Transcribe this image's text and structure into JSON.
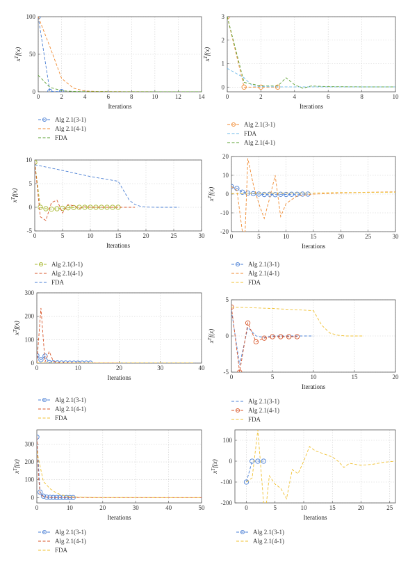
{
  "colors": {
    "blue": "#4a7fd4",
    "orange": "#f08a30",
    "green": "#5aa030",
    "red": "#d8562a",
    "gold": "#f0c030",
    "lightblue": "#6bb8e8",
    "olive": "#a8b830"
  },
  "chart_data": [
    {
      "type": "line",
      "xlabel": "Iterations",
      "ylabel": "x^T f(x)",
      "xlim": [
        0,
        14
      ],
      "ylim": [
        0,
        100
      ],
      "xticks": [
        0,
        2,
        4,
        6,
        8,
        10,
        12,
        14
      ],
      "yticks": [
        0,
        50,
        100
      ],
      "grid": true,
      "legend_position": "bottom-left",
      "series": [
        {
          "name": "Alg 2.1(3-1)",
          "color": "blue",
          "marker": true,
          "x": [
            0,
            1,
            2
          ],
          "y": [
            100,
            0.5,
            0.3
          ]
        },
        {
          "name": "Alg 2.1(4-1)",
          "color": "orange",
          "marker": false,
          "x": [
            0,
            1,
            2,
            3,
            4,
            5,
            6,
            8,
            10,
            12,
            14
          ],
          "y": [
            100,
            60,
            18,
            5,
            1,
            0.5,
            0.3,
            0.2,
            0.1,
            0.1,
            0.1
          ]
        },
        {
          "name": "FDA",
          "color": "green",
          "marker": false,
          "x": [
            0,
            1,
            2,
            3,
            4,
            6,
            8,
            10,
            12,
            14
          ],
          "y": [
            22,
            6,
            1.5,
            0.5,
            0.2,
            0.1,
            0.1,
            0.1,
            0.1,
            0.1
          ]
        }
      ]
    },
    {
      "type": "line",
      "xlabel": "Iterations",
      "ylabel": "x^T f(x)",
      "xlim": [
        0,
        10
      ],
      "ylim": [
        -0.2,
        3
      ],
      "xticks": [
        0,
        2,
        4,
        6,
        8,
        10
      ],
      "yticks": [
        0,
        1,
        2,
        3
      ],
      "grid": true,
      "legend_position": "bottom-left",
      "series": [
        {
          "name": "Alg 2.1(3-1)",
          "color": "orange",
          "marker": true,
          "x": [
            0,
            1,
            2,
            3
          ],
          "y": [
            3,
            0,
            0,
            0
          ]
        },
        {
          "name": "FDA",
          "color": "lightblue",
          "marker": false,
          "x": [
            0,
            1,
            1.5,
            2,
            3,
            4,
            5,
            6,
            8,
            10
          ],
          "y": [
            0.8,
            0.4,
            0.05,
            0.02,
            0.01,
            0.01,
            0.01,
            0.01,
            0.01,
            0.01
          ]
        },
        {
          "name": "Alg 2.1(4-1)",
          "color": "green",
          "marker": false,
          "x": [
            0,
            1,
            2,
            3,
            3.5,
            4,
            4.5,
            5,
            6,
            8,
            10
          ],
          "y": [
            3,
            0.2,
            0.05,
            0.05,
            0.4,
            0.1,
            -0.05,
            0.05,
            0.02,
            0.01,
            0.01
          ]
        }
      ]
    },
    {
      "type": "line",
      "xlabel": "Iterations",
      "ylabel": "x^T f(x)",
      "xlim": [
        0,
        30
      ],
      "ylim": [
        -5,
        10
      ],
      "xticks": [
        0,
        5,
        10,
        15,
        20,
        25,
        30
      ],
      "yticks": [
        -5,
        0,
        5,
        10
      ],
      "grid": true,
      "legend_position": "bottom-left",
      "series": [
        {
          "name": "Alg 2.1(3-1)",
          "color": "olive",
          "marker": true,
          "x": [
            0,
            1,
            2,
            3,
            4,
            5,
            6,
            7,
            8,
            9,
            10,
            11,
            12,
            13,
            14,
            15
          ],
          "y": [
            9.5,
            0,
            -0.3,
            -0.4,
            -0.3,
            -0.2,
            -0.1,
            -0.05,
            0,
            0,
            0,
            0,
            0,
            0,
            0,
            0
          ]
        },
        {
          "name": "Alg 2.1(4-1)",
          "color": "red",
          "marker": false,
          "x": [
            0,
            1,
            2,
            3,
            4,
            5,
            6,
            7,
            8,
            9,
            10,
            12,
            14,
            16,
            18
          ],
          "y": [
            9.5,
            -2,
            -2.8,
            1,
            1.5,
            -1.2,
            0.6,
            0.3,
            -0.2,
            0.1,
            0,
            0,
            0,
            0,
            0
          ]
        },
        {
          "name": "FDA",
          "color": "blue",
          "marker": false,
          "x": [
            0,
            5,
            10,
            15,
            17,
            18,
            19,
            20,
            22,
            26
          ],
          "y": [
            9,
            7.8,
            6.5,
            5.5,
            1.5,
            0.6,
            0.2,
            0.05,
            0,
            0
          ]
        }
      ]
    },
    {
      "type": "line",
      "xlabel": "Iterations",
      "ylabel": "x^T f(x)",
      "xlim": [
        0,
        30
      ],
      "ylim": [
        -20,
        20
      ],
      "xticks": [
        0,
        5,
        10,
        15,
        20,
        25,
        30
      ],
      "yticks": [
        -20,
        -10,
        0,
        10,
        20
      ],
      "grid": true,
      "legend_position": "bottom-left",
      "series": [
        {
          "name": "Alg 2.1(3-1)",
          "color": "blue",
          "marker": true,
          "x": [
            0,
            1,
            2,
            3,
            4,
            5,
            6,
            7,
            8,
            9,
            10,
            11,
            12,
            13,
            14
          ],
          "y": [
            4,
            3,
            1,
            0.5,
            0.2,
            0,
            -0.2,
            -0.1,
            -0.3,
            -0.1,
            -0.2,
            -0.1,
            -0.1,
            0,
            0
          ]
        },
        {
          "name": "Alg 2.1(4-1)",
          "color": "orange",
          "marker": false,
          "x": [
            0,
            1,
            2,
            2.5,
            3,
            4,
            5,
            6,
            7,
            8,
            9,
            10,
            12,
            15,
            20,
            25,
            30
          ],
          "y": [
            4,
            2,
            -20,
            -20,
            19,
            5,
            -5,
            -13,
            -2,
            10,
            -12,
            -5,
            -1,
            0,
            0.5,
            1,
            1.2
          ]
        },
        {
          "name": "FDA",
          "color": "gold",
          "marker": false,
          "x": [
            0,
            2,
            5,
            10,
            15,
            20,
            25,
            30
          ],
          "y": [
            0.3,
            0.3,
            0.4,
            0.5,
            0.6,
            0.8,
            0.9,
            1.0
          ]
        }
      ]
    },
    {
      "type": "line",
      "xlabel": "Iterations",
      "ylabel": "x^T f(x)",
      "xlim": [
        0,
        40
      ],
      "ylim": [
        0,
        300
      ],
      "xticks": [
        0,
        10,
        20,
        30,
        40
      ],
      "yticks": [
        0,
        100,
        200,
        300
      ],
      "grid": true,
      "legend_position": "bottom-left",
      "series": [
        {
          "name": "Alg 2.1(3-1)",
          "color": "blue",
          "marker": true,
          "x": [
            0,
            1,
            2,
            3,
            4,
            5,
            6,
            7,
            8,
            9,
            10,
            11,
            12,
            13
          ],
          "y": [
            32,
            15,
            30,
            2,
            1,
            0.5,
            0.3,
            0.2,
            0.1,
            0.1,
            0.1,
            0.1,
            0.1,
            0.1
          ]
        },
        {
          "name": "Alg 2.1(4-1)",
          "color": "red",
          "marker": false,
          "x": [
            0,
            1,
            2,
            3,
            4,
            5,
            6,
            8,
            10,
            14,
            20
          ],
          "y": [
            0,
            235,
            5,
            50,
            8,
            2,
            1,
            0.5,
            0.2,
            0.1,
            0.1
          ]
        },
        {
          "name": "FDA",
          "color": "gold",
          "marker": false,
          "x": [
            0,
            10,
            20,
            30,
            38
          ],
          "y": [
            0.5,
            0.5,
            0.5,
            0.5,
            0.5
          ]
        }
      ]
    },
    {
      "type": "line",
      "xlabel": "Iterations",
      "ylabel": "x^T f(x)",
      "xlim": [
        0,
        20
      ],
      "ylim": [
        -5,
        5
      ],
      "xticks": [
        0,
        5,
        10,
        15,
        20
      ],
      "yticks": [
        -5,
        0,
        5
      ],
      "grid": true,
      "legend_position": "bottom-left",
      "series": [
        {
          "name": "Alg 2.1(3-1)",
          "color": "blue",
          "marker": false,
          "x": [
            0,
            1,
            2,
            3,
            4,
            5,
            6,
            8,
            10
          ],
          "y": [
            3.5,
            -4,
            1.2,
            0,
            -0.2,
            0,
            0,
            0,
            0
          ]
        },
        {
          "name": "Alg 2.1(4-1)",
          "color": "red",
          "marker": true,
          "x": [
            0,
            1,
            2,
            3,
            4,
            5,
            6,
            7,
            8
          ],
          "y": [
            4,
            -5,
            1.8,
            -0.8,
            -0.3,
            -0.1,
            -0.1,
            -0.1,
            -0.1
          ]
        },
        {
          "name": "FDA",
          "color": "gold",
          "marker": false,
          "x": [
            0,
            5,
            10,
            11,
            12,
            13,
            14,
            16
          ],
          "y": [
            4,
            3.8,
            3.5,
            1.5,
            0.4,
            0.1,
            0,
            0
          ]
        }
      ]
    },
    {
      "type": "line",
      "xlabel": "Iterations",
      "ylabel": "x^T f(x)",
      "xlim": [
        0,
        50
      ],
      "ylim": [
        -30,
        380
      ],
      "xticks": [
        0,
        10,
        20,
        30,
        40,
        50
      ],
      "yticks": [
        0,
        100,
        200,
        300
      ],
      "grid": true,
      "legend_position": "bottom-left",
      "series": [
        {
          "name": "Alg 2.1(3-1)",
          "color": "blue",
          "marker": true,
          "x": [
            0,
            1,
            2,
            3,
            4,
            5,
            6,
            7,
            8,
            9,
            10,
            11
          ],
          "y": [
            340,
            30,
            8,
            2,
            1,
            0.5,
            0.3,
            0.2,
            0.1,
            0.1,
            0.1,
            0.1
          ]
        },
        {
          "name": "Alg 2.1(4-1)",
          "color": "red",
          "marker": false,
          "x": [
            0,
            0.5,
            1,
            2,
            4,
            8,
            12,
            20,
            30,
            40,
            50
          ],
          "y": [
            340,
            120,
            20,
            5,
            1,
            0.5,
            0.3,
            0.1,
            0.1,
            0.1,
            0.1
          ]
        },
        {
          "name": "FDA",
          "color": "gold",
          "marker": false,
          "x": [
            0,
            2,
            4,
            6,
            8,
            10,
            12,
            16,
            20,
            30,
            40,
            50
          ],
          "y": [
            260,
            90,
            50,
            25,
            12,
            6,
            3,
            1,
            0.5,
            0.3,
            0.2,
            0.1
          ]
        }
      ]
    },
    {
      "type": "line",
      "xlabel": "Iterations",
      "ylabel": "x^T f(x)",
      "xlim": [
        -2,
        26
      ],
      "ylim": [
        -200,
        150
      ],
      "xticks": [
        0,
        5,
        10,
        15,
        20,
        25
      ],
      "yticks": [
        -200,
        -100,
        0,
        100
      ],
      "grid": true,
      "legend_position": "bottom-left",
      "series": [
        {
          "name": "Alg 2.1(3-1)",
          "color": "blue",
          "marker": true,
          "x": [
            0,
            1,
            2,
            3
          ],
          "y": [
            -100,
            0,
            0,
            0
          ]
        },
        {
          "name": "Alg 2.1(4-1)",
          "color": "gold",
          "marker": false,
          "x": [
            0,
            1,
            2,
            3,
            3.5,
            4,
            5,
            6,
            7,
            8,
            9,
            10,
            11,
            12,
            13,
            15,
            16,
            17,
            18,
            20,
            22,
            24,
            26
          ],
          "y": [
            -100,
            -80,
            150,
            -200,
            -200,
            -70,
            -110,
            -130,
            -180,
            -40,
            -60,
            0,
            70,
            50,
            40,
            20,
            0,
            -30,
            -10,
            -20,
            -15,
            -5,
            0
          ]
        }
      ]
    }
  ]
}
